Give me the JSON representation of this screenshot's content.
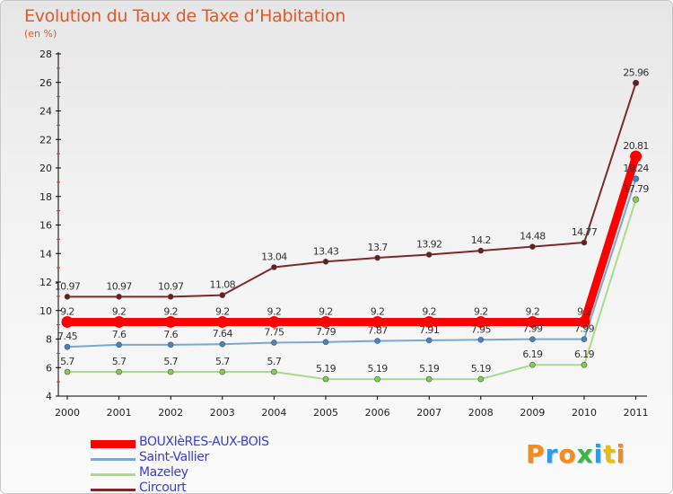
{
  "header": {
    "title": "Evolution du Taux de Taxe d’Habitation",
    "subtitle": "(en %)"
  },
  "logo": {
    "text": "Proxiti",
    "letters": [
      {
        "ch": "P",
        "color": "#f28c1c"
      },
      {
        "ch": "r",
        "color": "#2f9be0"
      },
      {
        "ch": "o",
        "color": "#f28c1c"
      },
      {
        "ch": "x",
        "color": "#3cb44a"
      },
      {
        "ch": "i",
        "color": "#2f9be0"
      },
      {
        "ch": "t",
        "color": "#e8c000"
      },
      {
        "ch": "i",
        "color": "#f28c1c"
      }
    ]
  },
  "chart_data": {
    "type": "line",
    "x": [
      "2000",
      "2001",
      "2002",
      "2003",
      "2004",
      "2005",
      "2006",
      "2007",
      "2008",
      "2009",
      "2010",
      "2011"
    ],
    "ylim": [
      4,
      28
    ],
    "yticks": [
      4,
      6,
      8,
      10,
      12,
      14,
      16,
      18,
      20,
      22,
      24,
      26,
      28
    ],
    "grid": false,
    "legend": "bottom-left",
    "series": [
      {
        "name": "BOUXIèRES-AUX-BOIS",
        "color": "#ff0000",
        "marker": "#ff0000",
        "width": 9,
        "values": [
          9.2,
          9.2,
          9.2,
          9.2,
          9.2,
          9.2,
          9.2,
          9.2,
          9.2,
          9.2,
          9.2,
          20.81
        ],
        "labels": [
          "9.2",
          "9.2",
          "9.2",
          "9.2",
          "9.2",
          "9.2",
          "9.2",
          "9.2",
          "9.2",
          "9.2",
          "9.2",
          "20.81"
        ]
      },
      {
        "name": "Saint-Vallier",
        "color": "#7ba7d0",
        "marker": "#3f86c9",
        "width": 2,
        "values": [
          7.45,
          7.6,
          7.6,
          7.64,
          7.75,
          7.79,
          7.87,
          7.91,
          7.95,
          7.99,
          7.99,
          19.24
        ],
        "labels": [
          "7.45",
          "7.6",
          "7.6",
          "7.64",
          "7.75",
          "7.79",
          "7.87",
          "7.91",
          "7.95",
          "7.99",
          "7.99",
          "19.24"
        ]
      },
      {
        "name": "Mazeley",
        "color": "#a9db8c",
        "marker": "#7ed24a",
        "width": 2,
        "values": [
          5.7,
          5.7,
          5.7,
          5.7,
          5.7,
          5.19,
          5.19,
          5.19,
          5.19,
          6.19,
          6.19,
          17.79
        ],
        "labels": [
          "5.7",
          "5.7",
          "5.7",
          "5.7",
          "5.7",
          "5.19",
          "5.19",
          "5.19",
          "5.19",
          "6.19",
          "6.19",
          "17.79"
        ]
      },
      {
        "name": "Circourt",
        "color": "#7a2a2a",
        "marker": "#6b1c1c",
        "width": 2,
        "values": [
          10.97,
          10.97,
          10.97,
          11.08,
          13.04,
          13.43,
          13.7,
          13.92,
          14.2,
          14.48,
          14.77,
          25.96
        ],
        "labels": [
          "10.97",
          "10.97",
          "10.97",
          "11.08",
          "13.04",
          "13.43",
          "13.7",
          "13.92",
          "14.2",
          "14.48",
          "14.77",
          "25.96"
        ]
      }
    ]
  }
}
